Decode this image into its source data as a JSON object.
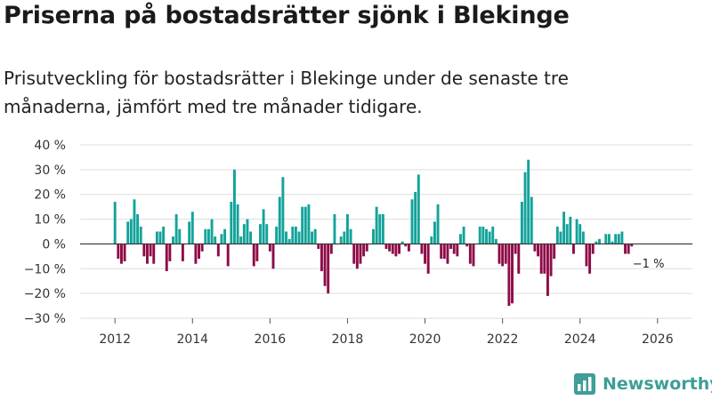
{
  "title": "Priserna på bostadsrätter sjönk i Blekinge",
  "subtitle": "Prisutveckling för bostadsrätter i Blekinge under de senaste tre månaderna, jämfört med tre månader tidigare.",
  "brand": {
    "name": "Newsworthy",
    "color": "#3f9e96",
    "icon": "bar-chart-logo-icon"
  },
  "colors": {
    "positive": "#12a39a",
    "negative": "#8e0a47",
    "grid": "#dddddd",
    "zero": "#333333"
  },
  "chart_data": {
    "type": "bar",
    "title": "Priserna på bostadsrätter sjönk i Blekinge",
    "xlabel": "",
    "ylabel": "",
    "unit": "%",
    "ylim": [
      -30,
      40
    ],
    "yticks": [
      -30,
      -20,
      -10,
      0,
      10,
      20,
      30,
      40
    ],
    "ytick_labels": [
      "−30 %",
      "−20 %",
      "−10 %",
      "0 %",
      "10 %",
      "20 %",
      "30 %",
      "40 %"
    ],
    "xlim": [
      2011.1,
      2026.9
    ],
    "xticks": [
      2012,
      2014,
      2016,
      2018,
      2020,
      2022,
      2024,
      2026
    ],
    "xtick_labels": [
      "2012",
      "2014",
      "2016",
      "2018",
      "2020",
      "2022",
      "2024",
      "2026"
    ],
    "start": [
      2012,
      1
    ],
    "frequency": "monthly",
    "values": [
      17,
      -6,
      -8,
      -7,
      9,
      10,
      18,
      12,
      7,
      -5,
      -8,
      -5,
      -8,
      5,
      5,
      7,
      -11,
      -7,
      3,
      12,
      6,
      -7,
      0,
      9,
      13,
      -8,
      -6,
      -3,
      6,
      6,
      10,
      3,
      -5,
      4,
      6,
      -9,
      17,
      30,
      16,
      3,
      8,
      10,
      5,
      -9,
      -7,
      8,
      14,
      8,
      -3,
      -10,
      7,
      19,
      27,
      5,
      2,
      7,
      7,
      5,
      15,
      15,
      16,
      5,
      6,
      -2,
      -11,
      -17,
      -20,
      -4,
      12,
      0,
      3,
      5,
      12,
      6,
      -8,
      -10,
      -8,
      -5,
      -3,
      0,
      6,
      15,
      12,
      12,
      -2,
      -3,
      -4,
      -5,
      -4,
      1,
      -1,
      -3,
      18,
      21,
      28,
      -4,
      -8,
      -12,
      3,
      9,
      16,
      -6,
      -6,
      -8,
      -2,
      -4,
      -5,
      4,
      7,
      -1,
      -8,
      -9,
      0,
      7,
      7,
      6,
      5,
      7,
      2,
      -8,
      -9,
      -8,
      -25,
      -24,
      -4,
      -12,
      17,
      29,
      34,
      19,
      -3,
      -5,
      -12,
      -12,
      -21,
      -13,
      -6,
      7,
      5,
      13,
      8,
      11,
      -4,
      10,
      8,
      5,
      -9,
      -12,
      -4,
      1,
      2,
      0,
      4,
      4,
      1,
      4,
      4,
      5,
      -4,
      -4,
      -1
    ],
    "annotations": [
      {
        "text": "−1 %",
        "year": 2026,
        "month": 2
      }
    ]
  }
}
